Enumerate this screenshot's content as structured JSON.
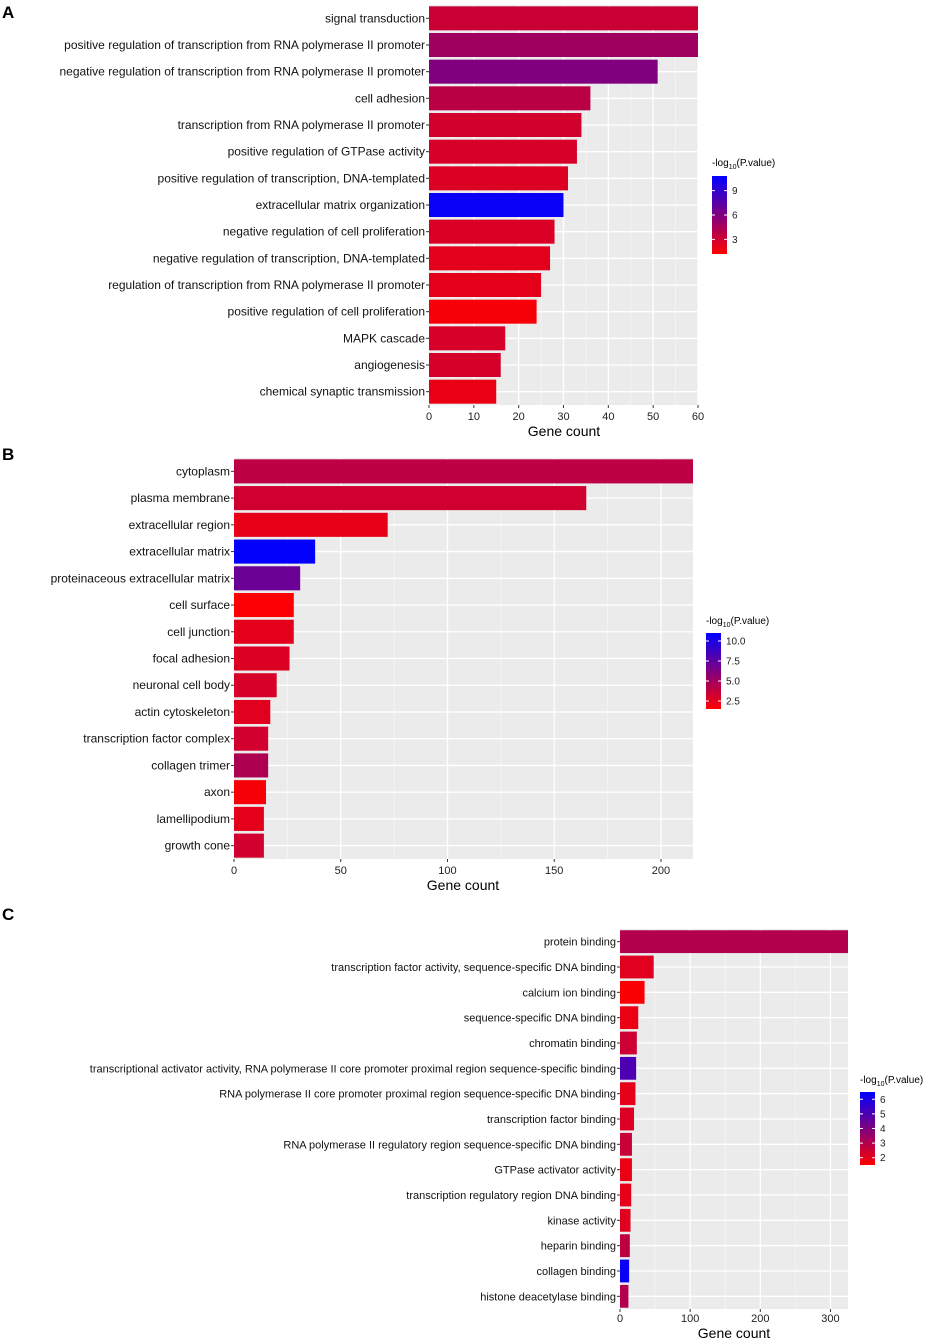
{
  "legend_title_prefix": "-log",
  "legend_title_sub": "10",
  "legend_title_suffix": "(P.value)",
  "xlabel": "Gene count",
  "low_color": "#ff0000",
  "high_color": "#0000ff",
  "chart_data": [
    {
      "panel": "A",
      "type": "bar",
      "orientation": "horizontal",
      "xlabel": "Gene count",
      "xlim": [
        0,
        60
      ],
      "xticks": [
        0,
        10,
        20,
        30,
        40,
        50,
        60
      ],
      "xtick_labels": [
        "0",
        "10",
        "20",
        "30",
        "40",
        "50",
        "60"
      ],
      "categories": [
        "signal transduction",
        "positive regulation of transcription from RNA polymerase II promoter",
        "negative regulation of transcription from RNA polymerase II promoter",
        "cell adhesion",
        "transcription from RNA polymerase II promoter",
        "positive regulation of GTPase activity",
        "positive regulation of transcription, DNA-templated",
        "extracellular matrix organization",
        "negative regulation of cell proliferation",
        "negative regulation of transcription, DNA-templated",
        "regulation of transcription from RNA polymerase II promoter",
        "positive regulation of cell proliferation",
        "MAPK cascade",
        "angiogenesis",
        "chemical synaptic transmission"
      ],
      "values": [
        60,
        60,
        51,
        36,
        34,
        33,
        31,
        30,
        28,
        27,
        25,
        24,
        17,
        16,
        15
      ],
      "neg_log10_p": [
        3.2,
        4.8,
        6.0,
        3.8,
        2.9,
        2.7,
        2.5,
        10.5,
        2.6,
        2.3,
        2.2,
        1.5,
        2.7,
        2.8,
        2.0
      ],
      "legend": {
        "min": 1.2,
        "max": 10.8,
        "ticks": [
          3,
          6,
          9
        ],
        "tick_labels": [
          "3",
          "6",
          "9"
        ]
      }
    },
    {
      "panel": "B",
      "type": "bar",
      "orientation": "horizontal",
      "xlabel": "Gene count",
      "xlim": [
        0,
        215
      ],
      "xticks": [
        0,
        50,
        100,
        150,
        200
      ],
      "xtick_labels": [
        "0",
        "50",
        "100",
        "150",
        "200"
      ],
      "categories": [
        "cytoplasm",
        "plasma membrane",
        "extracellular region",
        "extracellular matrix",
        "proteinaceous extracellular matrix",
        "cell surface",
        "cell junction",
        "focal adhesion",
        "neuronal cell body",
        "actin cytoskeleton",
        "transcription factor complex",
        "collagen trimer",
        "axon",
        "lamellipodium",
        "growth cone"
      ],
      "values": [
        215,
        165,
        72,
        38,
        31,
        28,
        28,
        26,
        20,
        17,
        16,
        16,
        15,
        14,
        14
      ],
      "neg_log10_p": [
        4.0,
        3.3,
        2.4,
        10.9,
        7.0,
        1.6,
        2.5,
        2.8,
        3.0,
        2.6,
        3.2,
        4.5,
        1.8,
        2.5,
        3.2
      ],
      "legend": {
        "min": 1.5,
        "max": 11.0,
        "ticks": [
          2.5,
          5.0,
          7.5,
          10.0
        ],
        "tick_labels": [
          "2.5",
          "5.0",
          "7.5",
          "10.0"
        ]
      }
    },
    {
      "panel": "C",
      "type": "bar",
      "orientation": "horizontal",
      "xlabel": "Gene count",
      "xlim": [
        0,
        325
      ],
      "xticks": [
        0,
        100,
        200,
        300
      ],
      "xtick_labels": [
        "0",
        "100",
        "200",
        "300"
      ],
      "categories": [
        "protein binding",
        "transcription factor activity, sequence-specific DNA binding",
        "calcium ion binding",
        "sequence-specific DNA binding",
        "chromatin binding",
        "transcriptional activator activity, RNA polymerase II core promoter proximal region sequence-specific binding",
        "RNA polymerase II core promoter proximal region sequence-specific DNA binding",
        "transcription factor binding",
        "RNA polymerase II regulatory region sequence-specific DNA binding",
        "GTPase activator activity",
        "transcription regulatory region DNA binding",
        "kinase activity",
        "heparin binding",
        "collagen binding",
        "histone deacetylase binding"
      ],
      "values": [
        325,
        48,
        35,
        26,
        24,
        23,
        22,
        20,
        17,
        17,
        16,
        15,
        14,
        13,
        12
      ],
      "neg_log10_p": [
        3.0,
        2.1,
        1.6,
        1.9,
        2.5,
        5.0,
        2.0,
        2.2,
        2.6,
        1.9,
        2.0,
        2.1,
        2.8,
        6.3,
        3.0
      ],
      "legend": {
        "min": 1.5,
        "max": 6.5,
        "ticks": [
          2,
          3,
          4,
          5,
          6
        ],
        "tick_labels": [
          "2",
          "3",
          "4",
          "5",
          "6"
        ]
      }
    }
  ]
}
